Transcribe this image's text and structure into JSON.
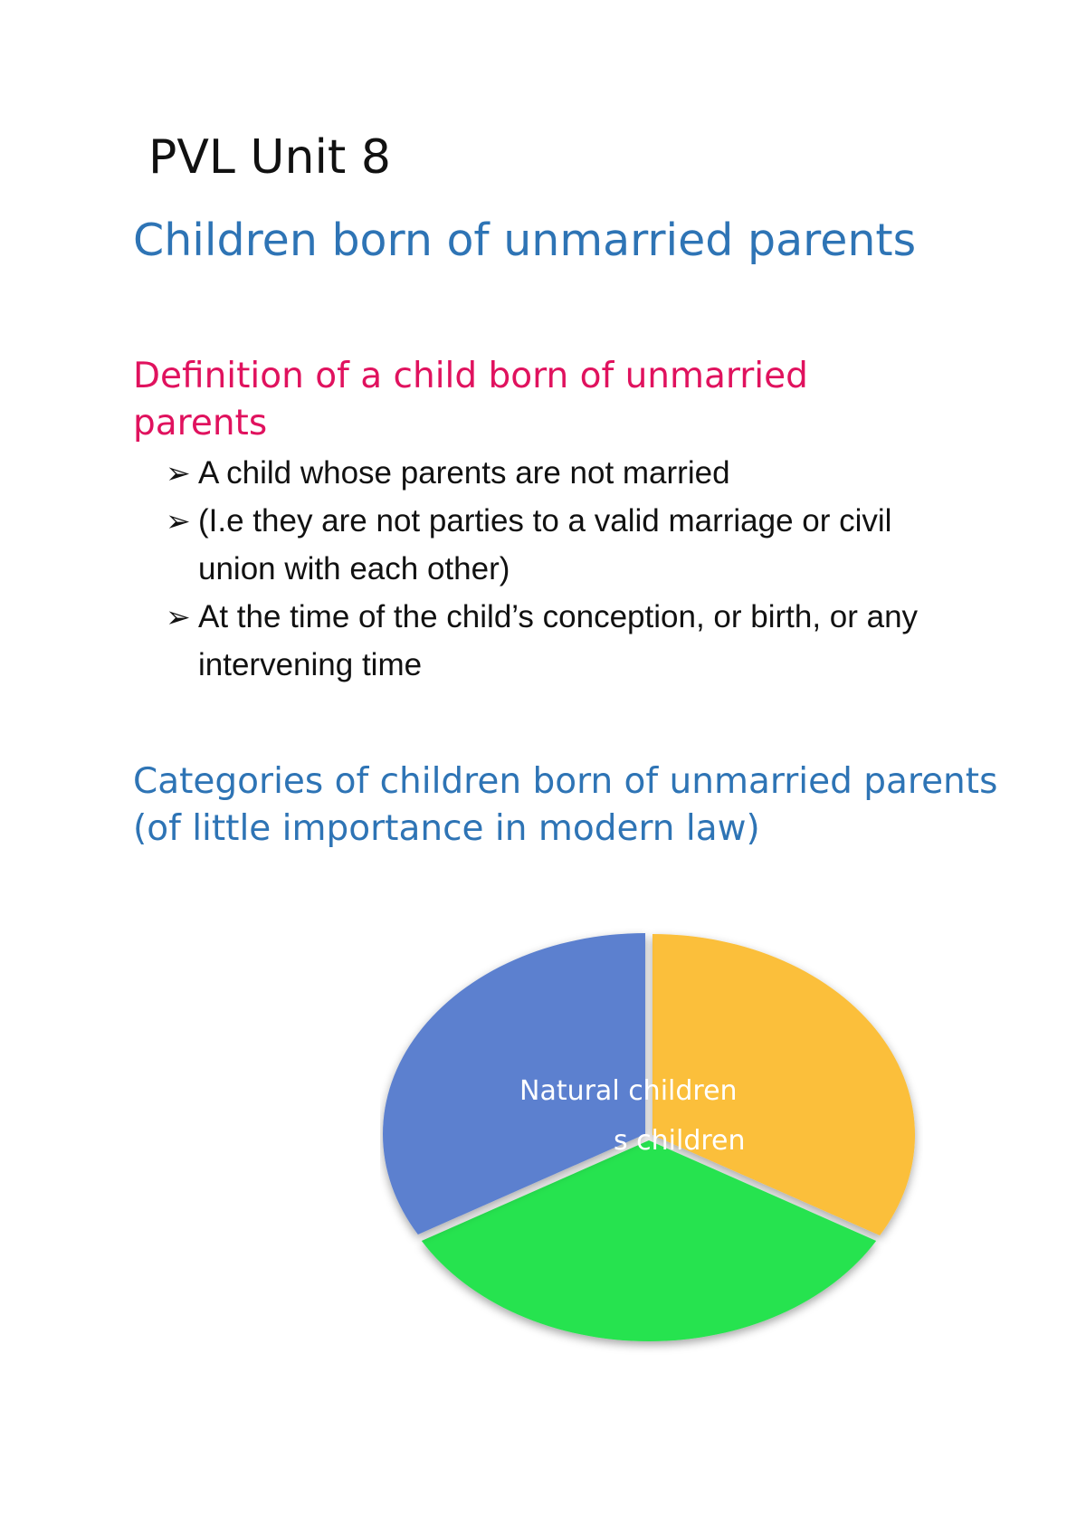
{
  "document": {
    "title": "PVL Unit 8",
    "section_heading": "Children born of unmarried parents",
    "definition_heading": "Definition of a child born of unmarried parents",
    "bullets": [
      "A child whose parents are not married",
      "(I.e they are not parties to a valid marriage or civil union with each other)",
      "At the time of the child’s conception, or birth, or any intervening time"
    ],
    "bullet_marker_icon": "arrowhead-bullet-icon",
    "categories_heading": "Categories of children born of unmarried parents (of little importance in modern law)"
  },
  "chart_data": {
    "type": "pie",
    "slices": [
      {
        "label": "",
        "value": 1,
        "color": "#fbbf3a"
      },
      {
        "label": "",
        "value": 1,
        "color": "#27e34f"
      },
      {
        "label": "Natural children",
        "value": 1,
        "color": "#5b80cf"
      }
    ],
    "overlapping_label_fragment": "s children"
  }
}
